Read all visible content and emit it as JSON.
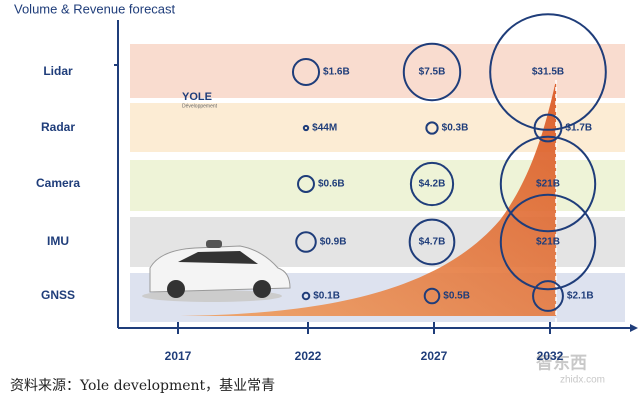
{
  "chart_data": {
    "type": "bubble",
    "title": "Volume & Revenue forecast",
    "categories": [
      "2017",
      "2022",
      "2027",
      "2032"
    ],
    "series": [
      {
        "name": "Lidar",
        "color": "#f9dccf",
        "values": [
          null,
          1.6,
          7.5,
          31.5
        ],
        "value_labels": [
          null,
          "$1.6B",
          "$7.5B",
          "$31.5B"
        ]
      },
      {
        "name": "Radar",
        "color": "#fcecd4",
        "values": [
          null,
          0.044,
          0.3,
          1.7
        ],
        "value_labels": [
          null,
          "$44M",
          "$0.3B",
          "$1.7B"
        ]
      },
      {
        "name": "Camera",
        "color": "#eef3d7",
        "values": [
          null,
          0.6,
          4.2,
          21
        ],
        "value_labels": [
          null,
          "$0.6B",
          "$4.2B",
          "$21B"
        ]
      },
      {
        "name": "IMU",
        "color": "#e4e4e4",
        "values": [
          null,
          0.9,
          4.7,
          21
        ],
        "value_labels": [
          null,
          "$0.9B",
          "$4.7B",
          "$21B"
        ]
      },
      {
        "name": "GNSS",
        "color": "#dde2ef",
        "values": [
          null,
          0.1,
          0.5,
          2.1
        ],
        "value_labels": [
          null,
          "$0.1B",
          "$0.5B",
          "$2.1B"
        ]
      }
    ],
    "bubble_color": "#1f3d7a"
  },
  "logo": {
    "name": "YOLE",
    "subtitle": "Développement"
  },
  "source": "资料来源：Yole development，基业常青",
  "watermark": {
    "name": "智东西",
    "url": "zhidx.com"
  }
}
